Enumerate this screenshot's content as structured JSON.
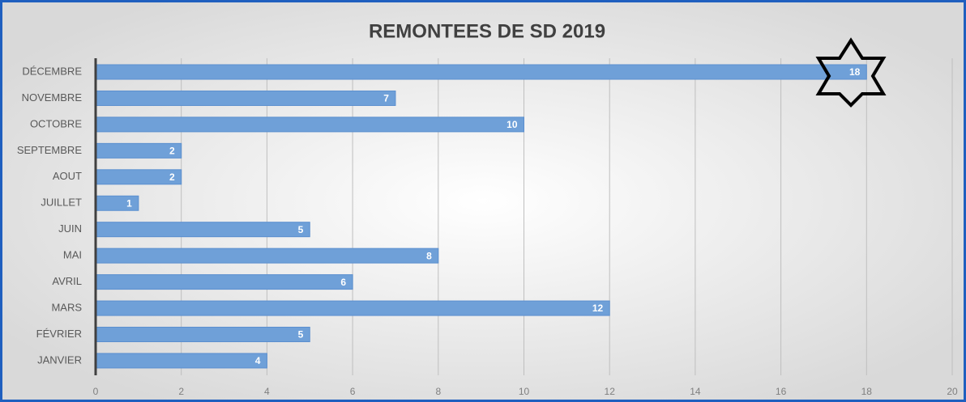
{
  "chart_data": {
    "type": "bar",
    "orientation": "horizontal",
    "title": "REMONTEES DE SD 2019",
    "categories": [
      "DÉCEMBRE",
      "NOVEMBRE",
      "OCTOBRE",
      "SEPTEMBRE",
      "AOUT",
      "JUILLET",
      "JUIN",
      "MAI",
      "AVRIL",
      "MARS",
      "FÉVRIER",
      "JANVIER"
    ],
    "values": [
      18,
      7,
      10,
      2,
      2,
      1,
      5,
      8,
      6,
      12,
      5,
      4
    ],
    "color": "#6fa0d8",
    "xlim": [
      0,
      20
    ],
    "xticks": [
      0,
      2,
      4,
      6,
      8,
      10,
      12,
      14,
      16,
      18,
      20
    ],
    "grid": true
  }
}
